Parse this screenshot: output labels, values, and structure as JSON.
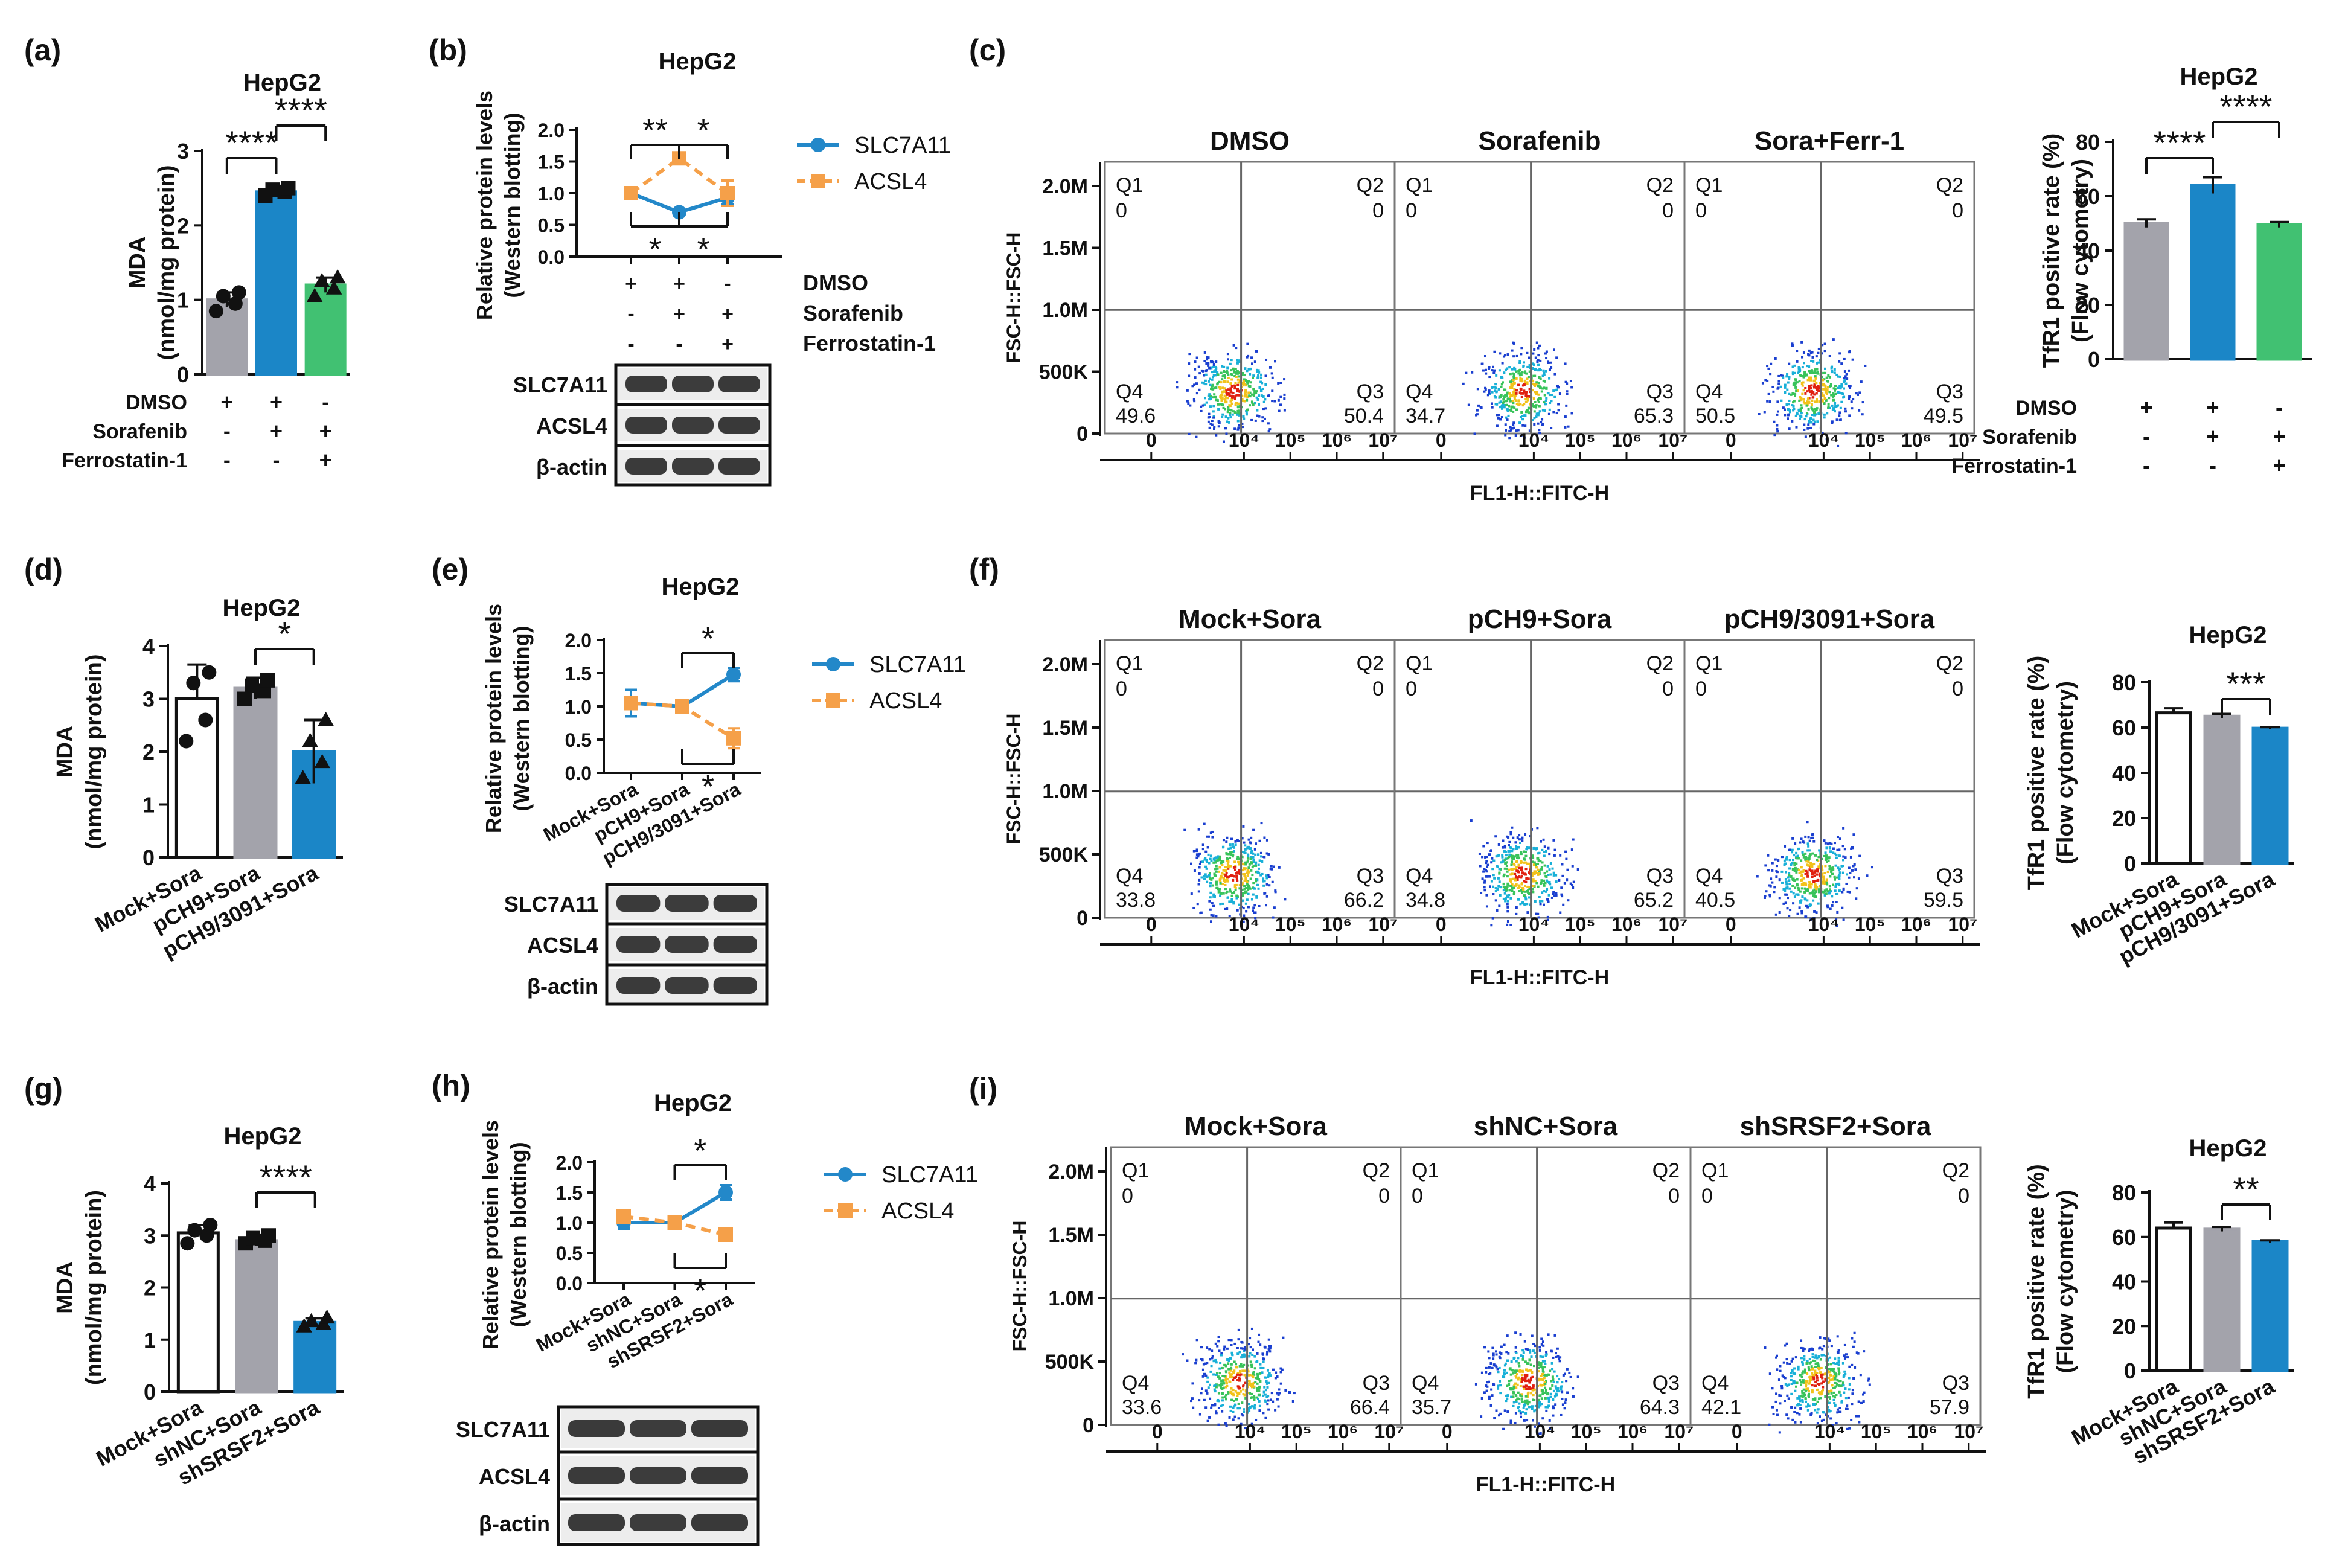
{
  "chart_data": {
    "cell_line": "HepG2",
    "panels": [
      {
        "id": "a",
        "label": "(a)",
        "type": "bar",
        "title": "HepG2",
        "ylabel_lines": [
          "MDA",
          "(nmol/mg protein)"
        ],
        "ylim": [
          0,
          3
        ],
        "yticks": [
          "0",
          "1",
          "2",
          "3"
        ],
        "values": [
          1.0,
          2.45,
          1.2
        ],
        "errors": [
          0.1,
          0.05,
          0.1
        ],
        "points": [
          [
            0.85,
            0.95,
            1.05,
            1.1
          ],
          [
            2.4,
            2.45,
            2.48,
            2.5
          ],
          [
            1.05,
            1.15,
            1.25,
            1.3
          ]
        ],
        "colors": [
          "#a3a3ab",
          "#1b86c7",
          "#41c172"
        ],
        "markers": [
          "circle",
          "square",
          "triangle"
        ],
        "condition_rows": [
          {
            "label": "DMSO",
            "signs": [
              "+",
              "+",
              "-"
            ]
          },
          {
            "label": "Sorafenib",
            "signs": [
              "-",
              "+",
              "+"
            ]
          },
          {
            "label": "Ferrostatin-1",
            "signs": [
              "-",
              "-",
              "+"
            ]
          }
        ],
        "significance": [
          {
            "pair": [
              0,
              1
            ],
            "text": "****"
          },
          {
            "pair": [
              1,
              2
            ],
            "text": "****"
          }
        ]
      },
      {
        "id": "b",
        "label": "(b)",
        "type": "line",
        "title": "HepG2",
        "ylabel_lines": [
          "Relative protein levels",
          "(Western blotting)"
        ],
        "ylim": [
          0,
          2.0
        ],
        "yticks": [
          "0.0",
          "0.5",
          "1.0",
          "1.5",
          "2.0"
        ],
        "series": [
          {
            "name": "SLC7A11",
            "values": [
              1.0,
              0.7,
              0.93
            ],
            "errors": [
              0.05,
              0.05,
              0.1
            ],
            "color": "#2388c9",
            "dashed": false,
            "marker": "circle"
          },
          {
            "name": "ACSL4",
            "values": [
              1.0,
              1.55,
              1.0
            ],
            "errors": [
              0.03,
              0.08,
              0.2
            ],
            "color": "#f5a049",
            "dashed": true,
            "marker": "square"
          }
        ],
        "condition_rows": [
          {
            "label": "DMSO",
            "signs": [
              "+",
              "+",
              "-"
            ]
          },
          {
            "label": "Sorafenib",
            "signs": [
              "-",
              "+",
              "+"
            ]
          },
          {
            "label": "Ferrostatin-1",
            "signs": [
              "-",
              "-",
              "+"
            ]
          }
        ],
        "significance_top": [
          {
            "pair": [
              0,
              1
            ],
            "text": "**"
          },
          {
            "pair": [
              1,
              2
            ],
            "text": "*"
          }
        ],
        "significance_bottom": [
          {
            "pair": [
              0,
              1
            ],
            "text": "*"
          },
          {
            "pair": [
              1,
              2
            ],
            "text": "*"
          }
        ],
        "blot_rows": [
          "SLC7A11",
          "ACSL4",
          "β-actin"
        ]
      },
      {
        "id": "c",
        "label": "(c)",
        "type": "scatter",
        "facets": [
          {
            "title": "DMSO",
            "q1": "0",
            "q2": "0",
            "q3": "50.4",
            "q4": "49.6"
          },
          {
            "title": "Sorafenib",
            "q1": "0",
            "q2": "0",
            "q3": "65.3",
            "q4": "34.7"
          },
          {
            "title": "Sora+Ferr-1",
            "q1": "0",
            "q2": "0",
            "q3": "49.5",
            "q4": "50.5"
          }
        ],
        "quadrant_names": [
          "Q1",
          "Q2",
          "Q3",
          "Q4"
        ],
        "ylabel": "FSC-H::FSC-H",
        "xlabel": "FL1-H::FITC-H",
        "yticks": [
          "0",
          "500K",
          "1.0M",
          "1.5M",
          "2.0M"
        ],
        "xticks": [
          "0",
          "10⁴",
          "10⁵",
          "10⁶",
          "10⁷"
        ]
      },
      {
        "id": "c-bar",
        "type": "bar",
        "title": "HepG2",
        "ylabel_lines": [
          "TfR1 positive rate (%)",
          "(Flow cytometry)"
        ],
        "ylim": [
          0,
          80
        ],
        "yticks": [
          "0",
          "20",
          "40",
          "60",
          "80"
        ],
        "values": [
          50,
          64,
          49.5
        ],
        "errors": [
          1.5,
          3,
          1
        ],
        "colors": [
          "#a3a3ab",
          "#1b86c7",
          "#41c172"
        ],
        "condition_rows": [
          {
            "label": "DMSO",
            "signs": [
              "+",
              "+",
              "-"
            ]
          },
          {
            "label": "Sorafenib",
            "signs": [
              "-",
              "+",
              "+"
            ]
          },
          {
            "label": "Ferrostatin-1",
            "signs": [
              "-",
              "-",
              "+"
            ]
          }
        ],
        "significance": [
          {
            "pair": [
              0,
              1
            ],
            "text": "****"
          },
          {
            "pair": [
              1,
              2
            ],
            "text": "****"
          }
        ]
      },
      {
        "id": "d",
        "label": "(d)",
        "type": "bar",
        "title": "HepG2",
        "ylabel_lines": [
          "MDA",
          "(nmol/mg protein)"
        ],
        "ylim": [
          0,
          4
        ],
        "yticks": [
          "0",
          "1",
          "2",
          "3",
          "4"
        ],
        "categories": [
          "Mock+Sora",
          "pCH9+Sora",
          "pCH9/3091+Sora"
        ],
        "values": [
          3.0,
          3.2,
          2.0
        ],
        "errors": [
          0.65,
          0.2,
          0.6
        ],
        "points": [
          [
            2.2,
            2.6,
            3.3,
            3.5
          ],
          [
            3.0,
            3.15,
            3.25,
            3.35
          ],
          [
            1.5,
            1.8,
            2.2,
            2.6
          ]
        ],
        "colors": [
          "#ffffff",
          "#a3a3ab",
          "#1b86c7"
        ],
        "markers": [
          "circle",
          "square",
          "triangle"
        ],
        "significance": [
          {
            "pair": [
              1,
              2
            ],
            "text": "*"
          }
        ]
      },
      {
        "id": "e",
        "label": "(e)",
        "type": "line",
        "title": "HepG2",
        "ylabel_lines": [
          "Relative protein levels",
          "(Western blotting)"
        ],
        "ylim": [
          0,
          2.0
        ],
        "yticks": [
          "0.0",
          "0.5",
          "1.0",
          "1.5",
          "2.0"
        ],
        "categories": [
          "Mock+Sora",
          "pCH9+Sora",
          "pCH9/3091+Sora"
        ],
        "series": [
          {
            "name": "SLC7A11",
            "values": [
              1.05,
              1.0,
              1.48
            ],
            "errors": [
              0.2,
              0.03,
              0.1
            ],
            "color": "#2388c9",
            "dashed": false,
            "marker": "circle"
          },
          {
            "name": "ACSL4",
            "values": [
              1.05,
              1.0,
              0.52
            ],
            "errors": [
              0.03,
              0.03,
              0.15
            ],
            "color": "#f5a049",
            "dashed": true,
            "marker": "square"
          }
        ],
        "significance_top": [
          {
            "pair": [
              1,
              2
            ],
            "text": "*"
          }
        ],
        "significance_bottom": [
          {
            "pair": [
              1,
              2
            ],
            "text": "*"
          }
        ],
        "blot_rows": [
          "SLC7A11",
          "ACSL4",
          "β-actin"
        ]
      },
      {
        "id": "f",
        "label": "(f)",
        "type": "scatter",
        "facets": [
          {
            "title": "Mock+Sora",
            "q1": "0",
            "q2": "0",
            "q3": "66.2",
            "q4": "33.8"
          },
          {
            "title": "pCH9+Sora",
            "q1": "0",
            "q2": "0",
            "q3": "65.2",
            "q4": "34.8"
          },
          {
            "title": "pCH9/3091+Sora",
            "q1": "0",
            "q2": "0",
            "q3": "59.5",
            "q4": "40.5"
          }
        ],
        "quadrant_names": [
          "Q1",
          "Q2",
          "Q3",
          "Q4"
        ],
        "ylabel": "FSC-H::FSC-H",
        "xlabel": "FL1-H::FITC-H",
        "yticks": [
          "0",
          "500K",
          "1.0M",
          "1.5M",
          "2.0M"
        ],
        "xticks": [
          "0",
          "10⁴",
          "10⁵",
          "10⁶",
          "10⁷"
        ]
      },
      {
        "id": "f-bar",
        "type": "bar",
        "title": "HepG2",
        "ylabel_lines": [
          "TfR1 positive rate (%)",
          "(Flow cytometry)"
        ],
        "ylim": [
          0,
          80
        ],
        "yticks": [
          "0",
          "20",
          "40",
          "60",
          "80"
        ],
        "categories": [
          "Mock+Sora",
          "pCH9+Sora",
          "pCH9/3091+Sora"
        ],
        "values": [
          66.5,
          65,
          59.7
        ],
        "errors": [
          2,
          1,
          0.5
        ],
        "colors": [
          "#ffffff",
          "#a3a3ab",
          "#1b86c7"
        ],
        "significance": [
          {
            "pair": [
              1,
              2
            ],
            "text": "***"
          }
        ]
      },
      {
        "id": "g",
        "label": "(g)",
        "type": "bar",
        "title": "HepG2",
        "ylabel_lines": [
          "MDA",
          "(nmol/mg protein)"
        ],
        "ylim": [
          0,
          4
        ],
        "yticks": [
          "0",
          "1",
          "2",
          "3",
          "4"
        ],
        "categories": [
          "Mock+Sora",
          "shNC+Sora",
          "shSRSF2+Sora"
        ],
        "values": [
          3.05,
          2.9,
          1.33
        ],
        "errors": [
          0.15,
          0.1,
          0.08
        ],
        "points": [
          [
            2.85,
            3.0,
            3.1,
            3.2
          ],
          [
            2.85,
            2.9,
            2.95,
            3.0
          ],
          [
            1.25,
            1.3,
            1.35,
            1.42
          ]
        ],
        "colors": [
          "#ffffff",
          "#a3a3ab",
          "#1b86c7"
        ],
        "markers": [
          "circle",
          "square",
          "triangle"
        ],
        "significance": [
          {
            "pair": [
              1,
              2
            ],
            "text": "****"
          }
        ]
      },
      {
        "id": "h",
        "label": "(h)",
        "type": "line",
        "title": "HepG2",
        "ylabel_lines": [
          "Relative protein levels",
          "(Western blotting)"
        ],
        "ylim": [
          0,
          2.0
        ],
        "yticks": [
          "0.0",
          "0.5",
          "1.0",
          "1.5",
          "2.0"
        ],
        "categories": [
          "Mock+Sora",
          "shNC+Sora",
          "shSRSF2+Sora"
        ],
        "series": [
          {
            "name": "SLC7A11",
            "values": [
              1.0,
              1.0,
              1.5
            ],
            "errors": [
              0.1,
              0.03,
              0.12
            ],
            "color": "#2388c9",
            "dashed": false,
            "marker": "circle"
          },
          {
            "name": "ACSL4",
            "values": [
              1.1,
              1.0,
              0.8
            ],
            "errors": [
              0.05,
              0.03,
              0.05
            ],
            "color": "#f5a049",
            "dashed": true,
            "marker": "square"
          }
        ],
        "significance_top": [
          {
            "pair": [
              1,
              2
            ],
            "text": "*"
          }
        ],
        "significance_bottom": [
          {
            "pair": [
              1,
              2
            ],
            "text": "*"
          }
        ],
        "blot_rows": [
          "SLC7A11",
          "ACSL4",
          "β-actin"
        ]
      },
      {
        "id": "i",
        "label": "(i)",
        "type": "scatter",
        "facets": [
          {
            "title": "Mock+Sora",
            "q1": "0",
            "q2": "0",
            "q3": "66.4",
            "q4": "33.6"
          },
          {
            "title": "shNC+Sora",
            "q1": "0",
            "q2": "0",
            "q3": "64.3",
            "q4": "35.7"
          },
          {
            "title": "shSRSF2+Sora",
            "q1": "0",
            "q2": "0",
            "q3": "57.9",
            "q4": "42.1"
          }
        ],
        "quadrant_names": [
          "Q1",
          "Q2",
          "Q3",
          "Q4"
        ],
        "ylabel": "FSC-H::FSC-H",
        "xlabel": "FL1-H::FITC-H",
        "yticks": [
          "0",
          "500K",
          "1.0M",
          "1.5M",
          "2.0M"
        ],
        "xticks": [
          "0",
          "10⁴",
          "10⁵",
          "10⁶",
          "10⁷"
        ]
      },
      {
        "id": "i-bar",
        "type": "bar",
        "title": "HepG2",
        "ylabel_lines": [
          "TfR1 positive rate (%)",
          "(Flow cytometry)"
        ],
        "ylim": [
          0,
          80
        ],
        "yticks": [
          "0",
          "20",
          "40",
          "60",
          "80"
        ],
        "categories": [
          "Mock+Sora",
          "shNC+Sora",
          "shSRSF2+Sora"
        ],
        "values": [
          64,
          63.5,
          58
        ],
        "errors": [
          2.5,
          1,
          0.5
        ],
        "colors": [
          "#ffffff",
          "#a3a3ab",
          "#1b86c7"
        ],
        "significance": [
          {
            "pair": [
              1,
              2
            ],
            "text": "**"
          }
        ]
      }
    ]
  }
}
